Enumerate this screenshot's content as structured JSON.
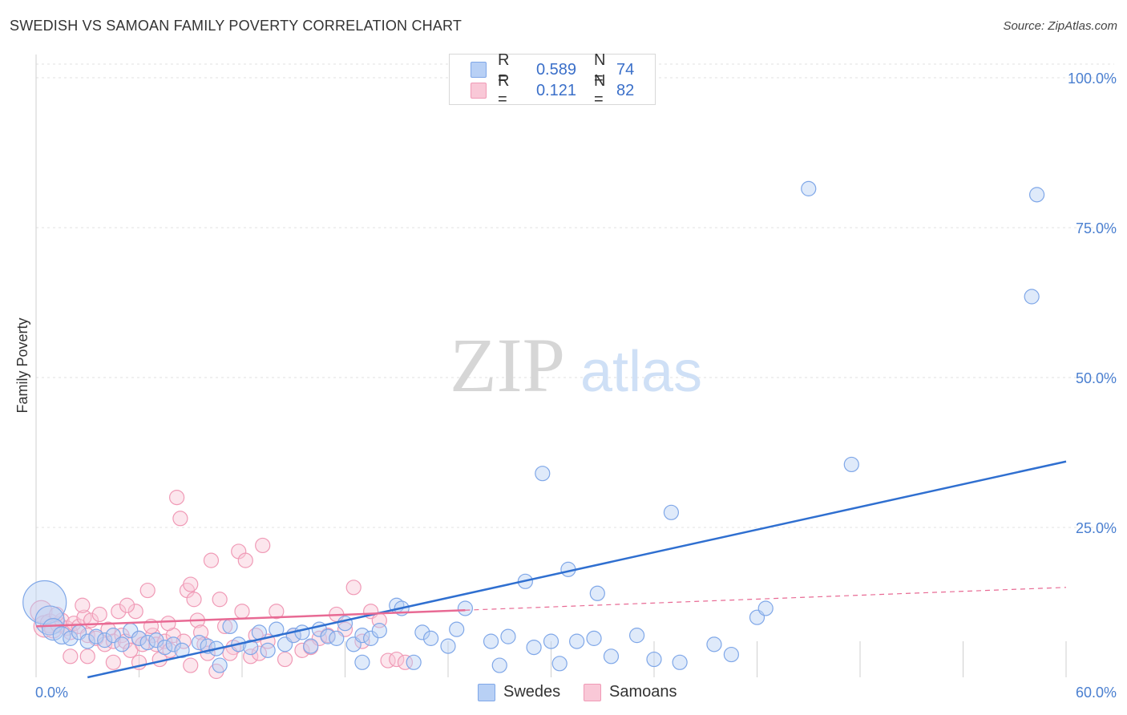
{
  "header": {
    "title": "SWEDISH VS SAMOAN FAMILY POVERTY CORRELATION CHART",
    "source": "Source: ZipAtlas.com"
  },
  "watermark": {
    "zip": "ZIP",
    "atlas": "atlas"
  },
  "legend": {
    "rows": [
      {
        "r_label": "R =",
        "r_value": "0.589",
        "n_label": "N =",
        "n_value": "74",
        "color": "#7fa7e8",
        "fill": "#b8d0f5"
      },
      {
        "r_label": "R =",
        "r_value": "0.121",
        "n_label": "N =",
        "n_value": "82",
        "color": "#f09ab6",
        "fill": "#f9c8d7"
      }
    ],
    "bottom": [
      {
        "label": "Swedes",
        "color": "#7fa7e8",
        "fill": "#b8d0f5"
      },
      {
        "label": "Samoans",
        "color": "#f09ab6",
        "fill": "#f9c8d7"
      }
    ]
  },
  "chart_data": {
    "type": "scatter",
    "title": "SWEDISH VS SAMOAN FAMILY POVERTY CORRELATION CHART",
    "xlabel": "",
    "ylabel": "Family Poverty",
    "xlim": [
      0,
      60
    ],
    "ylim": [
      0,
      100
    ],
    "x_tick_labels": [
      {
        "value": 0,
        "label": "0.0%"
      },
      {
        "value": 60,
        "label": "60.0%"
      }
    ],
    "y_tick_labels": [
      {
        "value": 100,
        "label": "100.0%"
      },
      {
        "value": 75,
        "label": "75.0%"
      },
      {
        "value": 50,
        "label": "50.0%"
      },
      {
        "value": 25,
        "label": "25.0%"
      }
    ],
    "grid": true,
    "legend_position": "top-center",
    "colors": {
      "swedes": "#7fa7e8",
      "samoans": "#f09ab6",
      "swedes_line": "#2f6fd0",
      "samoans_line": "#e86a94"
    },
    "series": [
      {
        "name": "Swedes",
        "trend": {
          "x": [
            3.0,
            60.0
          ],
          "y": [
            0.0,
            36.0
          ]
        },
        "points": [
          [
            0.5,
            12.5,
            3
          ],
          [
            0.8,
            9.5,
            2
          ],
          [
            1.0,
            8.0,
            1.5
          ],
          [
            1.5,
            7.0,
            1.2
          ],
          [
            2.0,
            6.5,
            1
          ],
          [
            2.5,
            7.5,
            1
          ],
          [
            3.0,
            6.0,
            1
          ],
          [
            3.5,
            6.8,
            1
          ],
          [
            4.0,
            6.2,
            1
          ],
          [
            4.5,
            7.0,
            1
          ],
          [
            5.0,
            5.5,
            1
          ],
          [
            5.5,
            7.8,
            1
          ],
          [
            6.0,
            6.5,
            1
          ],
          [
            6.5,
            5.8,
            1
          ],
          [
            7.0,
            6.2,
            1
          ],
          [
            7.5,
            5.0,
            1
          ],
          [
            8.0,
            5.5,
            1
          ],
          [
            8.5,
            4.5,
            1
          ],
          [
            9.5,
            5.8,
            1
          ],
          [
            10.0,
            5.2,
            1
          ],
          [
            10.5,
            4.8,
            1
          ],
          [
            11.3,
            8.5,
            1
          ],
          [
            11.8,
            5.5,
            1
          ],
          [
            12.5,
            5.0,
            1
          ],
          [
            13.0,
            7.5,
            1
          ],
          [
            13.5,
            4.5,
            1
          ],
          [
            14.0,
            8.0,
            1
          ],
          [
            14.5,
            5.5,
            1
          ],
          [
            15.0,
            7.0,
            1
          ],
          [
            15.5,
            7.5,
            1
          ],
          [
            16.0,
            5.2,
            1
          ],
          [
            16.5,
            8.0,
            1
          ],
          [
            17.0,
            6.8,
            1
          ],
          [
            17.5,
            6.5,
            1
          ],
          [
            18.0,
            9.0,
            1
          ],
          [
            18.5,
            5.5,
            1
          ],
          [
            19.0,
            7.0,
            1
          ],
          [
            19.5,
            6.5,
            1
          ],
          [
            20.0,
            7.8,
            1
          ],
          [
            21.0,
            12.0,
            1
          ],
          [
            21.3,
            11.5,
            1
          ],
          [
            22.5,
            7.5,
            1
          ],
          [
            23.0,
            6.5,
            1
          ],
          [
            24.0,
            5.2,
            1
          ],
          [
            24.5,
            8.0,
            1
          ],
          [
            25.0,
            11.5,
            1
          ],
          [
            26.5,
            6.0,
            1
          ],
          [
            27.5,
            6.8,
            1
          ],
          [
            27.0,
            2.0,
            1
          ],
          [
            28.5,
            16.0,
            1
          ],
          [
            29.0,
            5.0,
            1
          ],
          [
            29.5,
            34.0,
            1
          ],
          [
            30.0,
            6.0,
            1
          ],
          [
            30.5,
            2.3,
            1
          ],
          [
            31.0,
            18.0,
            1
          ],
          [
            31.5,
            6.0,
            1
          ],
          [
            32.5,
            6.5,
            1
          ],
          [
            32.7,
            14.0,
            1
          ],
          [
            33.5,
            3.5,
            1
          ],
          [
            35.0,
            7.0,
            1
          ],
          [
            37.0,
            27.5,
            1
          ],
          [
            37.5,
            2.5,
            1
          ],
          [
            39.5,
            5.5,
            1
          ],
          [
            40.5,
            3.8,
            1
          ],
          [
            42.0,
            10.0,
            1
          ],
          [
            42.5,
            11.5,
            1
          ],
          [
            45.0,
            81.5,
            1
          ],
          [
            47.5,
            35.5,
            1
          ],
          [
            58.0,
            63.5,
            1
          ],
          [
            58.3,
            80.5,
            1
          ],
          [
            10.7,
            2.0,
            1
          ],
          [
            19.0,
            2.5,
            1
          ],
          [
            22.0,
            2.5,
            1
          ],
          [
            36.0,
            3.0,
            1
          ]
        ]
      },
      {
        "name": "Samoans",
        "trend": {
          "x": [
            0.0,
            25.0
          ],
          "y": [
            8.5,
            11.2
          ]
        },
        "trend_dashed": {
          "x": [
            25.0,
            60.0
          ],
          "y": [
            11.2,
            15.0
          ]
        },
        "points": [
          [
            0.3,
            11.0,
            1.5
          ],
          [
            0.5,
            8.5,
            1.5
          ],
          [
            0.8,
            9.0,
            1.3
          ],
          [
            1.0,
            8.0,
            1.2
          ],
          [
            1.3,
            8.8,
            1.1
          ],
          [
            1.5,
            9.5,
            1
          ],
          [
            1.8,
            8.2,
            1
          ],
          [
            2.0,
            7.5,
            1
          ],
          [
            2.2,
            9.0,
            1
          ],
          [
            2.5,
            8.5,
            1
          ],
          [
            2.8,
            10.0,
            1
          ],
          [
            3.0,
            7.0,
            1
          ],
          [
            3.2,
            9.5,
            1
          ],
          [
            3.5,
            6.5,
            1
          ],
          [
            3.7,
            10.5,
            1
          ],
          [
            4.0,
            5.5,
            1
          ],
          [
            4.2,
            8.0,
            1
          ],
          [
            4.5,
            6.0,
            1
          ],
          [
            4.8,
            11.0,
            1
          ],
          [
            5.0,
            7.0,
            1
          ],
          [
            5.2,
            6.0,
            1
          ],
          [
            5.5,
            4.5,
            1
          ],
          [
            5.8,
            11.0,
            1
          ],
          [
            6.0,
            6.5,
            1
          ],
          [
            6.2,
            5.5,
            1
          ],
          [
            6.5,
            14.5,
            1
          ],
          [
            6.8,
            7.0,
            1
          ],
          [
            7.0,
            5.5,
            1
          ],
          [
            7.2,
            3.0,
            1
          ],
          [
            7.5,
            6.0,
            1
          ],
          [
            7.8,
            4.5,
            1
          ],
          [
            8.0,
            7.0,
            1
          ],
          [
            8.2,
            30.0,
            1
          ],
          [
            8.4,
            26.5,
            1
          ],
          [
            8.6,
            6.0,
            1
          ],
          [
            8.8,
            14.5,
            1
          ],
          [
            9.0,
            15.5,
            1
          ],
          [
            9.2,
            13.0,
            1
          ],
          [
            9.4,
            9.5,
            1
          ],
          [
            9.6,
            7.5,
            1
          ],
          [
            9.8,
            5.5,
            1
          ],
          [
            10.0,
            4.0,
            1
          ],
          [
            10.2,
            19.5,
            1
          ],
          [
            10.5,
            1.0,
            1
          ],
          [
            10.7,
            13.0,
            1
          ],
          [
            11.0,
            8.5,
            1
          ],
          [
            11.5,
            5.0,
            1
          ],
          [
            11.8,
            21.0,
            1
          ],
          [
            12.0,
            11.0,
            1
          ],
          [
            12.2,
            19.5,
            1
          ],
          [
            12.5,
            3.5,
            1
          ],
          [
            12.8,
            7.0,
            1
          ],
          [
            13.0,
            4.0,
            1
          ],
          [
            13.2,
            22.0,
            1
          ],
          [
            13.5,
            6.0,
            1
          ],
          [
            14.0,
            11.0,
            1
          ],
          [
            15.0,
            7.0,
            1
          ],
          [
            15.5,
            4.5,
            1
          ],
          [
            16.0,
            5.0,
            1
          ],
          [
            16.5,
            6.5,
            1
          ],
          [
            17.0,
            7.0,
            1
          ],
          [
            17.5,
            10.5,
            1
          ],
          [
            18.0,
            8.0,
            1
          ],
          [
            18.5,
            15.0,
            1
          ],
          [
            19.0,
            6.0,
            1
          ],
          [
            19.5,
            11.0,
            1
          ],
          [
            20.0,
            9.5,
            1
          ],
          [
            20.5,
            2.8,
            1
          ],
          [
            21.0,
            3.0,
            1
          ],
          [
            21.5,
            2.5,
            1
          ],
          [
            2.0,
            3.5,
            1
          ],
          [
            3.0,
            3.5,
            1
          ],
          [
            4.5,
            2.5,
            1
          ],
          [
            6.0,
            2.5,
            1
          ],
          [
            9.0,
            2.0,
            1
          ],
          [
            1.2,
            10.5,
            1
          ],
          [
            2.7,
            12.0,
            1
          ],
          [
            5.3,
            12.0,
            1
          ],
          [
            6.7,
            8.5,
            1
          ],
          [
            7.7,
            9.0,
            1
          ],
          [
            11.3,
            4.0,
            1
          ],
          [
            14.5,
            3.0,
            1
          ]
        ]
      }
    ]
  }
}
